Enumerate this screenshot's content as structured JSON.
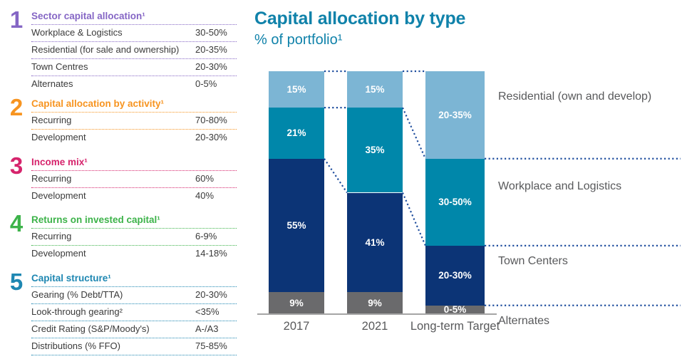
{
  "colors": {
    "title_teal": "#1082aa",
    "residential_blue": "#7cb5d4",
    "workplace_teal": "#0087aa",
    "town_navy": "#0c3476",
    "alternates_grey": "#6a6a6c",
    "connector_blue": "#1f4e9e",
    "axis_grey": "#a5a5a5",
    "label_grey": "#58595b",
    "row_text": "#3a3a3a"
  },
  "left_panel": {
    "sections": [
      {
        "num": "1",
        "accent": "#8566c5",
        "title": "Sector capital allocation¹",
        "rows": [
          {
            "label": "Workplace & Logistics",
            "value": "30-50%"
          },
          {
            "label": "Residential (for sale and ownership)",
            "value": "20-35%"
          },
          {
            "label": "Town Centres",
            "value": "20-30%"
          },
          {
            "label": "Alternates",
            "value": "0-5%"
          }
        ]
      },
      {
        "num": "2",
        "accent": "#f79420",
        "title": "Capital allocation by activity¹",
        "rows": [
          {
            "label": "Recurring",
            "value": "70-80%"
          },
          {
            "label": "Development",
            "value": "20-30%"
          }
        ]
      },
      {
        "num": "3",
        "accent": "#d6246c",
        "title": "Income mix¹",
        "rows": [
          {
            "label": "Recurring",
            "value": "60%"
          },
          {
            "label": "Development",
            "value": "40%"
          }
        ]
      },
      {
        "num": "4",
        "accent": "#3db34a",
        "title": "Returns on invested capital¹",
        "rows": [
          {
            "label": "Recurring",
            "value": "6-9%"
          },
          {
            "label": "Development",
            "value": "14-18%"
          }
        ]
      },
      {
        "num": "5",
        "accent": "#1e87b2",
        "title": "Capital structure¹",
        "rows": [
          {
            "label": "Gearing (% Debt/TTA)",
            "value": "20-30%"
          },
          {
            "label": "Look-through gearing²",
            "value": "<35%"
          },
          {
            "label": "Credit Rating (S&P/Moody's)",
            "value": "A-/A3"
          },
          {
            "label": "Distributions (% FFO)",
            "value": "75-85%"
          }
        ]
      }
    ]
  },
  "chart_data": {
    "type": "bar",
    "stacked": true,
    "title": "Capital allocation by type",
    "subtitle": "% of portfolio¹",
    "categories": [
      "2017",
      "2021",
      "Long-term Target"
    ],
    "series": [
      {
        "name": "Residential (own and develop)",
        "color": "#7cb5d4",
        "labels": [
          "15%",
          "15%",
          "20-35%"
        ],
        "heights_pct": [
          15,
          15,
          36
        ]
      },
      {
        "name": "Workplace and Logistics",
        "color": "#0087aa",
        "labels": [
          "21%",
          "35%",
          "30-50%"
        ],
        "heights_pct": [
          21,
          35,
          35.8
        ]
      },
      {
        "name": "Town Centers",
        "color": "#0c3476",
        "labels": [
          "55%",
          "41%",
          "20-30%"
        ],
        "heights_pct": [
          55,
          41,
          24.6
        ]
      },
      {
        "name": "Alternates",
        "color": "#6a6a6c",
        "labels": [
          "9%",
          "9%",
          "0-5%"
        ],
        "heights_pct": [
          9,
          9,
          3.6
        ]
      }
    ],
    "ylim": [
      0,
      100
    ],
    "grid": false,
    "legend_position": "right"
  }
}
